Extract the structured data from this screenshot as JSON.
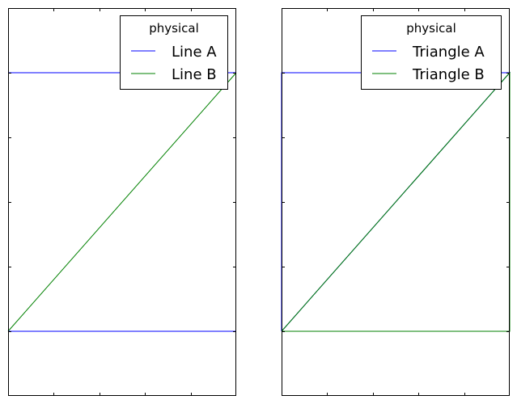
{
  "chart_data": [
    {
      "type": "line",
      "title": "",
      "xlabel": "",
      "ylabel": "",
      "xlim": [
        0,
        5
      ],
      "ylim": [
        -0.5,
        2.5
      ],
      "grid": false,
      "legend": {
        "title": "physical",
        "placement": "top-right"
      },
      "series": [
        {
          "name": "Line A",
          "color": "#0000ff",
          "segments": [
            [
              [
                0,
                0
              ],
              [
                5,
                0
              ]
            ],
            [
              [
                0,
                2
              ],
              [
                5,
                2
              ]
            ]
          ]
        },
        {
          "name": "Line B",
          "color": "#008000",
          "segments": [
            [
              [
                0,
                0
              ],
              [
                5,
                2
              ]
            ]
          ]
        }
      ]
    },
    {
      "type": "line",
      "title": "",
      "xlabel": "",
      "ylabel": "",
      "xlim": [
        0,
        5
      ],
      "ylim": [
        -0.5,
        2.5
      ],
      "grid": false,
      "legend": {
        "title": "physical",
        "placement": "top-right"
      },
      "series": [
        {
          "name": "Triangle A",
          "color": "#0000ff",
          "segments": [
            [
              [
                0,
                0
              ],
              [
                5,
                2
              ],
              [
                0,
                2
              ],
              [
                0,
                0
              ]
            ]
          ]
        },
        {
          "name": "Triangle B",
          "color": "#008000",
          "segments": [
            [
              [
                0,
                0
              ],
              [
                5,
                0
              ],
              [
                5,
                2
              ],
              [
                0,
                0
              ]
            ]
          ]
        }
      ]
    }
  ]
}
